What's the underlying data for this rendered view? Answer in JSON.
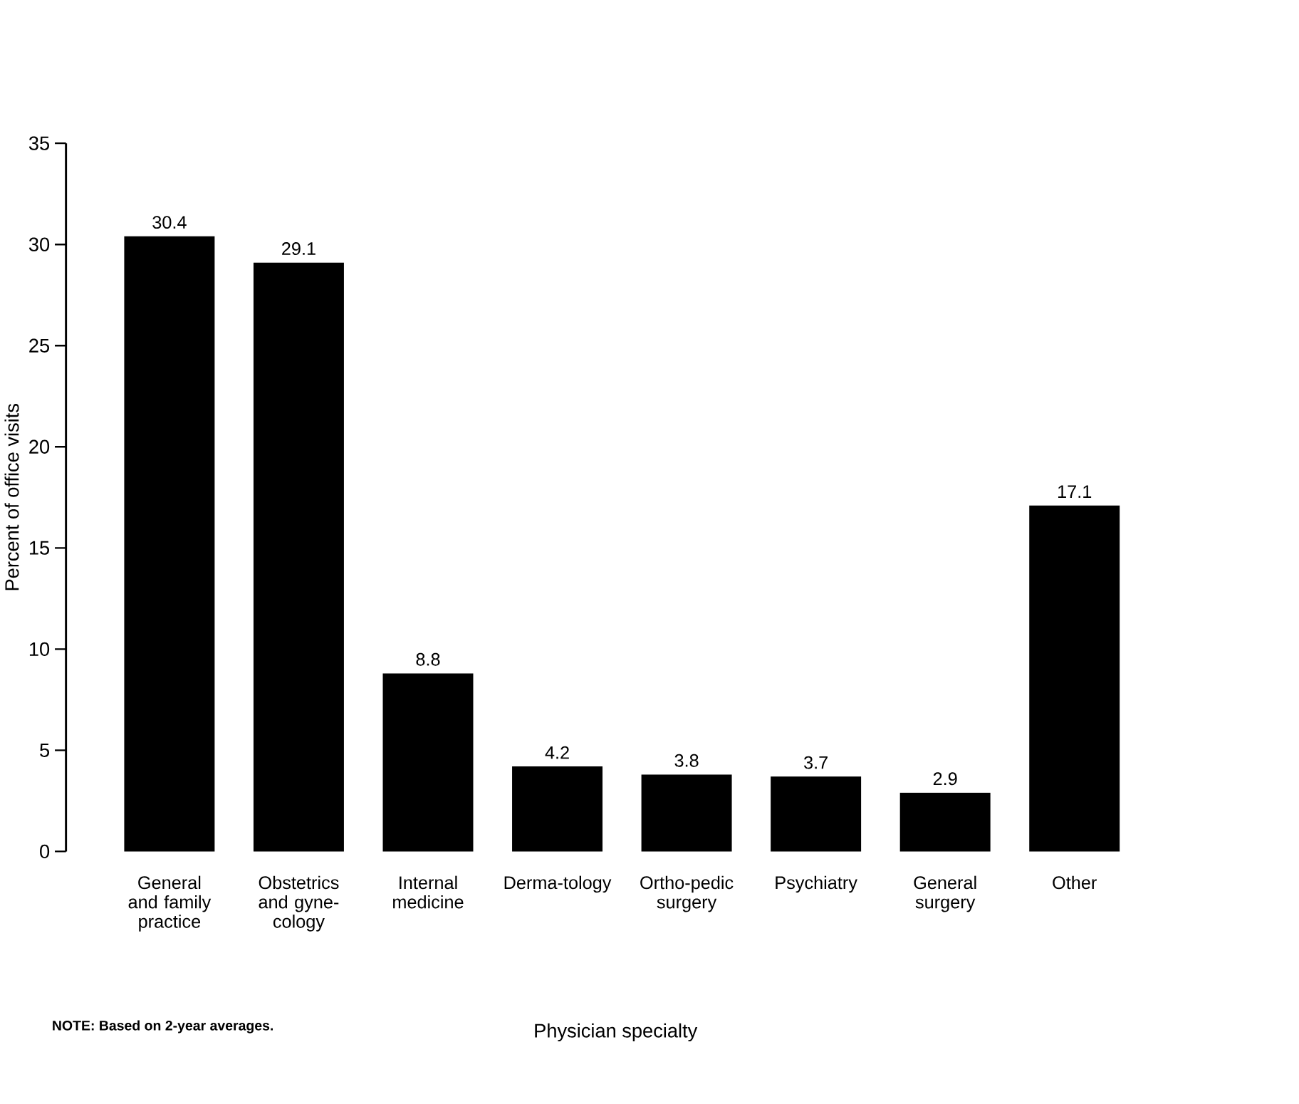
{
  "chart_data": {
    "type": "bar",
    "xlabel": "Physician specialty",
    "ylabel": "Percent of office visits",
    "categories": [
      "General and family practice",
      "Obstetrics and gyne-cology",
      "Internal medicine",
      "Derma-tology",
      "Ortho-pedic surgery",
      "Psychiatry",
      "General surgery",
      "Other"
    ],
    "values": [
      30.4,
      29.1,
      8.8,
      4.2,
      3.8,
      3.7,
      2.9,
      17.1
    ],
    "color": "#000000",
    "ylim": [
      0,
      35
    ],
    "yticks": [
      0,
      5,
      10,
      15,
      20,
      25,
      30,
      35
    ],
    "data_labels": true,
    "annotations": [
      "NOTE: Based on 2-year averages."
    ]
  }
}
